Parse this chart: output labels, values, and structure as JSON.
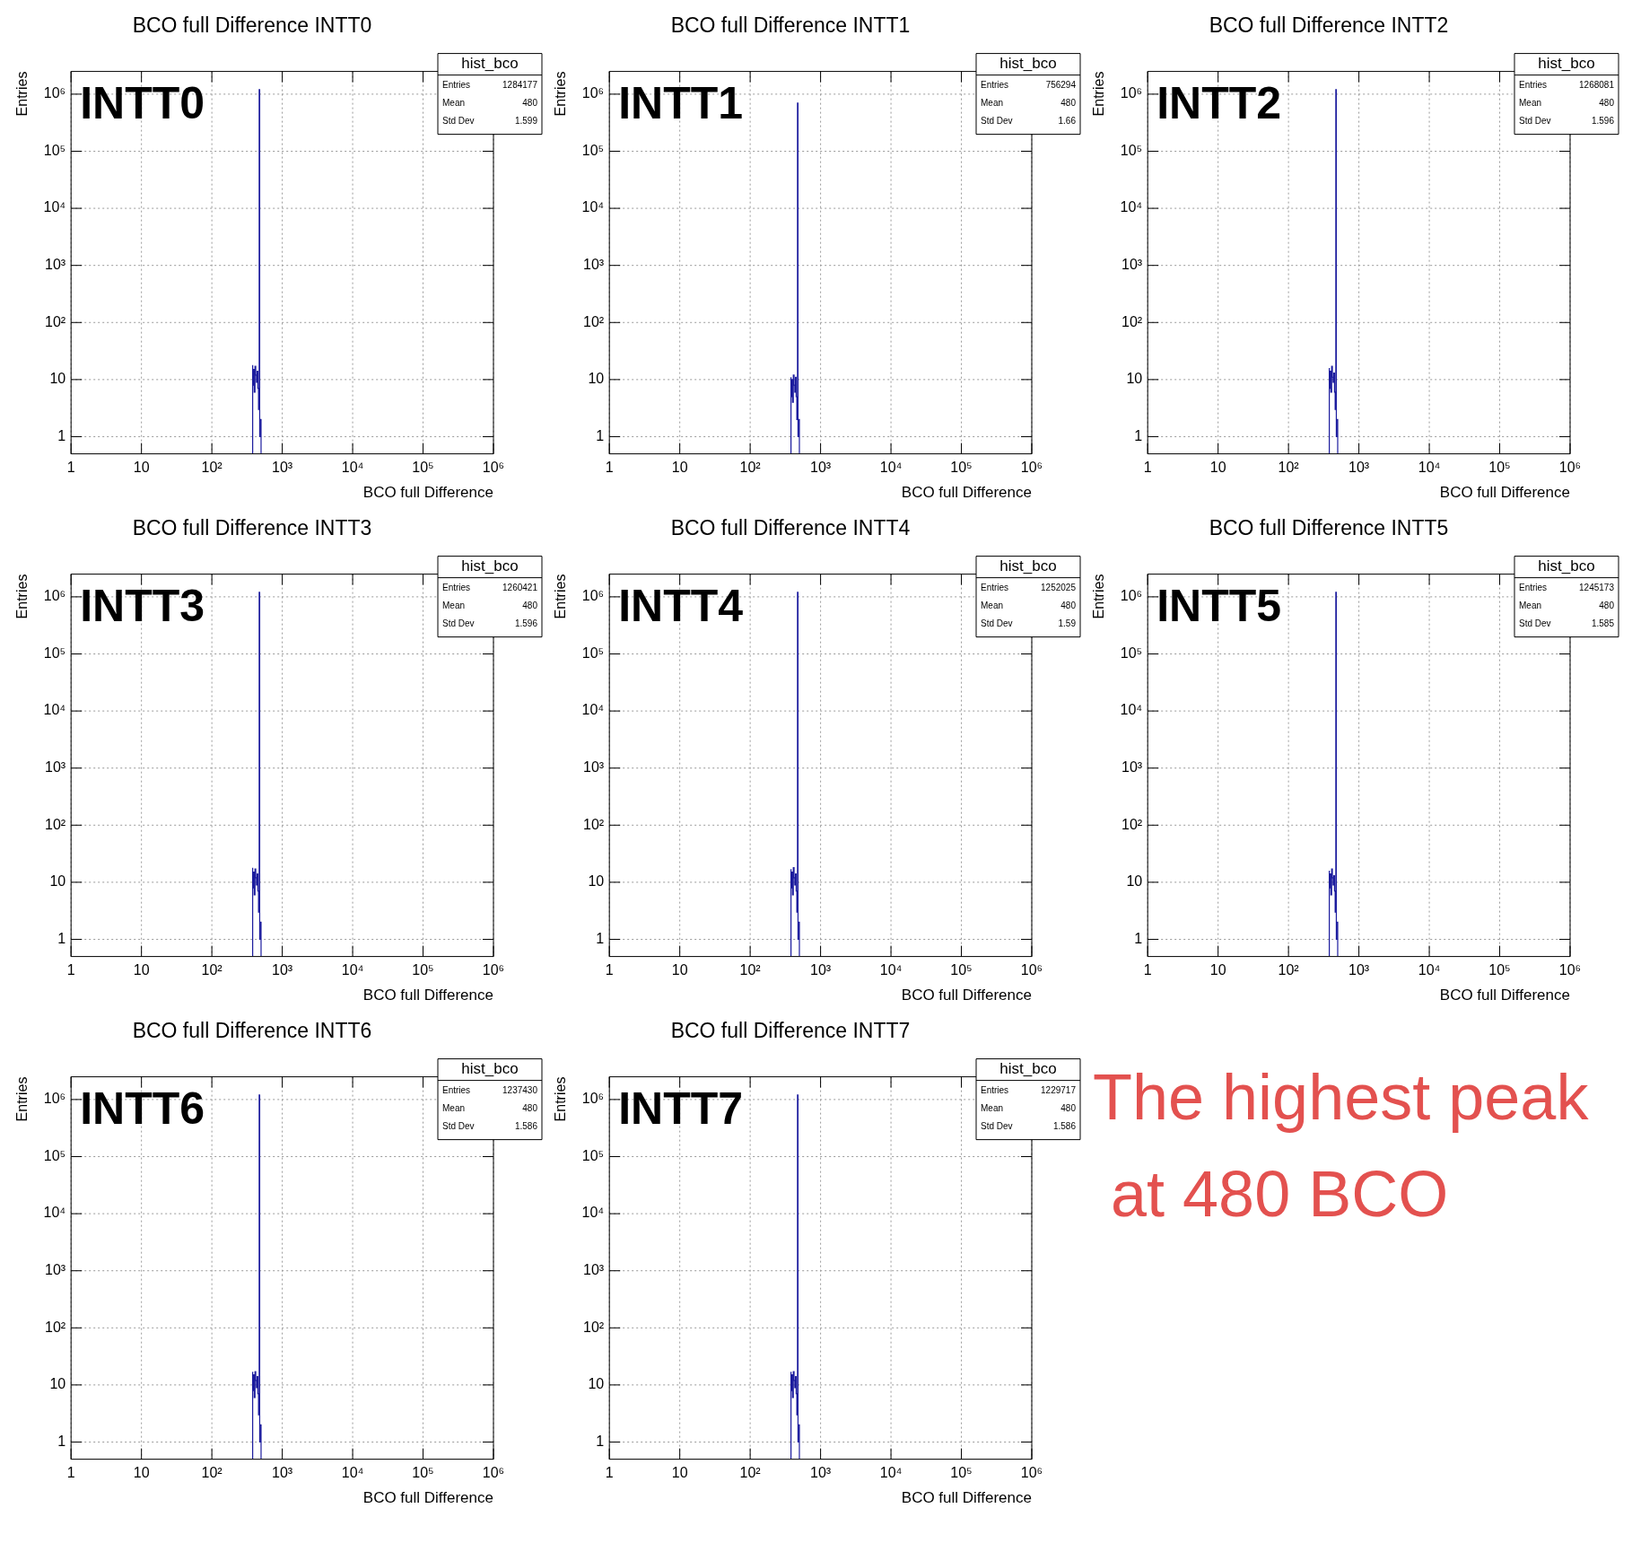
{
  "chart_data": [
    {
      "type": "histogram",
      "title": "BCO full Difference INTT0",
      "xlabel": "BCO full Difference",
      "ylabel": "Entries",
      "color": "#1c1c9e",
      "bins": [
        380,
        390,
        400,
        410,
        420,
        430,
        440,
        450,
        460,
        470,
        478,
        482,
        490,
        500
      ],
      "values": [
        18,
        8,
        15,
        6,
        17,
        12,
        9,
        14,
        7,
        3,
        1200000,
        1,
        2
      ],
      "log": "xy",
      "grid": true,
      "legend": false,
      "xlim": [
        1,
        1000000
      ],
      "ylim": [
        0.5,
        2500000
      ],
      "xticks": [
        {
          "value": 1,
          "label": "1"
        },
        {
          "value": 10,
          "label": "10"
        },
        {
          "value": 100,
          "label": "10²"
        },
        {
          "value": 1000,
          "label": "10³"
        },
        {
          "value": 10000,
          "label": "10⁴"
        },
        {
          "value": 100000,
          "label": "10⁵"
        },
        {
          "value": 1000000,
          "label": "10⁶"
        }
      ],
      "yticks": [
        {
          "value": 1,
          "label": "1"
        },
        {
          "value": 10,
          "label": "10"
        },
        {
          "value": 100,
          "label": "10²"
        },
        {
          "value": 1000,
          "label": "10³"
        },
        {
          "value": 10000,
          "label": "10⁴"
        },
        {
          "value": 100000,
          "label": "10⁵"
        },
        {
          "value": 1000000,
          "label": "10⁶"
        }
      ],
      "annotations": [
        "INTT0",
        "hist_bco",
        "Entries",
        "1284177",
        "Mean",
        "480",
        "Std Dev",
        "1.599"
      ]
    },
    {
      "type": "histogram",
      "title": "BCO full Difference INTT1",
      "xlabel": "BCO full Difference",
      "ylabel": "Entries",
      "color": "#1c1c9e",
      "bins": [
        380,
        390,
        400,
        410,
        420,
        430,
        440,
        450,
        460,
        470,
        478,
        482,
        490,
        500
      ],
      "values": [
        11,
        5,
        10,
        4,
        12,
        8,
        6,
        11,
        5,
        2,
        700000,
        1,
        2
      ],
      "log": "xy",
      "grid": true,
      "legend": false,
      "xlim": [
        1,
        1000000
      ],
      "ylim": [
        0.5,
        2500000
      ],
      "xticks": [
        {
          "value": 1,
          "label": "1"
        },
        {
          "value": 10,
          "label": "10"
        },
        {
          "value": 100,
          "label": "10²"
        },
        {
          "value": 1000,
          "label": "10³"
        },
        {
          "value": 10000,
          "label": "10⁴"
        },
        {
          "value": 100000,
          "label": "10⁵"
        },
        {
          "value": 1000000,
          "label": "10⁶"
        }
      ],
      "yticks": [
        {
          "value": 1,
          "label": "1"
        },
        {
          "value": 10,
          "label": "10"
        },
        {
          "value": 100,
          "label": "10²"
        },
        {
          "value": 1000,
          "label": "10³"
        },
        {
          "value": 10000,
          "label": "10⁴"
        },
        {
          "value": 100000,
          "label": "10⁵"
        },
        {
          "value": 1000000,
          "label": "10⁶"
        }
      ],
      "annotations": [
        "INTT1",
        "hist_bco",
        "Entries",
        "756294",
        "Mean",
        "480",
        "Std Dev",
        "1.66"
      ]
    },
    {
      "type": "histogram",
      "title": "BCO full Difference INTT2",
      "xlabel": "BCO full Difference",
      "ylabel": "Entries",
      "color": "#1c1c9e",
      "bins": [
        380,
        390,
        400,
        410,
        420,
        430,
        440,
        450,
        460,
        470,
        478,
        482,
        490,
        500
      ],
      "values": [
        16,
        7,
        14,
        6,
        17,
        11,
        9,
        13,
        6,
        3,
        1200000,
        1,
        2
      ],
      "log": "xy",
      "grid": true,
      "legend": false,
      "xlim": [
        1,
        1000000
      ],
      "ylim": [
        0.5,
        2500000
      ],
      "xticks": [
        {
          "value": 1,
          "label": "1"
        },
        {
          "value": 10,
          "label": "10"
        },
        {
          "value": 100,
          "label": "10²"
        },
        {
          "value": 1000,
          "label": "10³"
        },
        {
          "value": 10000,
          "label": "10⁴"
        },
        {
          "value": 100000,
          "label": "10⁵"
        },
        {
          "value": 1000000,
          "label": "10⁶"
        }
      ],
      "yticks": [
        {
          "value": 1,
          "label": "1"
        },
        {
          "value": 10,
          "label": "10"
        },
        {
          "value": 100,
          "label": "10²"
        },
        {
          "value": 1000,
          "label": "10³"
        },
        {
          "value": 10000,
          "label": "10⁴"
        },
        {
          "value": 100000,
          "label": "10⁵"
        },
        {
          "value": 1000000,
          "label": "10⁶"
        }
      ],
      "annotations": [
        "INTT2",
        "hist_bco",
        "Entries",
        "1268081",
        "Mean",
        "480",
        "Std Dev",
        "1.596"
      ]
    },
    {
      "type": "histogram",
      "title": "BCO full Difference INTT3",
      "xlabel": "BCO full Difference",
      "ylabel": "Entries",
      "color": "#1c1c9e",
      "bins": [
        380,
        390,
        400,
        410,
        420,
        430,
        440,
        450,
        460,
        470,
        478,
        482,
        490,
        500
      ],
      "values": [
        18,
        8,
        15,
        6,
        17,
        12,
        9,
        14,
        7,
        3,
        1200000,
        1,
        2
      ],
      "log": "xy",
      "grid": true,
      "legend": false,
      "xlim": [
        1,
        1000000
      ],
      "ylim": [
        0.5,
        2500000
      ],
      "xticks": [
        {
          "value": 1,
          "label": "1"
        },
        {
          "value": 10,
          "label": "10"
        },
        {
          "value": 100,
          "label": "10²"
        },
        {
          "value": 1000,
          "label": "10³"
        },
        {
          "value": 10000,
          "label": "10⁴"
        },
        {
          "value": 100000,
          "label": "10⁵"
        },
        {
          "value": 1000000,
          "label": "10⁶"
        }
      ],
      "yticks": [
        {
          "value": 1,
          "label": "1"
        },
        {
          "value": 10,
          "label": "10"
        },
        {
          "value": 100,
          "label": "10²"
        },
        {
          "value": 1000,
          "label": "10³"
        },
        {
          "value": 10000,
          "label": "10⁴"
        },
        {
          "value": 100000,
          "label": "10⁵"
        },
        {
          "value": 1000000,
          "label": "10⁶"
        }
      ],
      "annotations": [
        "INTT3",
        "hist_bco",
        "Entries",
        "1260421",
        "Mean",
        "480",
        "Std Dev",
        "1.596"
      ]
    },
    {
      "type": "histogram",
      "title": "BCO full Difference INTT4",
      "xlabel": "BCO full Difference",
      "ylabel": "Entries",
      "color": "#1c1c9e",
      "bins": [
        380,
        390,
        400,
        410,
        420,
        430,
        440,
        450,
        460,
        470,
        478,
        482,
        490,
        500
      ],
      "values": [
        17,
        8,
        15,
        6,
        18,
        12,
        9,
        14,
        7,
        3,
        1200000,
        1,
        2
      ],
      "log": "xy",
      "grid": true,
      "legend": false,
      "xlim": [
        1,
        1000000
      ],
      "ylim": [
        0.5,
        2500000
      ],
      "xticks": [
        {
          "value": 1,
          "label": "1"
        },
        {
          "value": 10,
          "label": "10"
        },
        {
          "value": 100,
          "label": "10²"
        },
        {
          "value": 1000,
          "label": "10³"
        },
        {
          "value": 10000,
          "label": "10⁴"
        },
        {
          "value": 100000,
          "label": "10⁵"
        },
        {
          "value": 1000000,
          "label": "10⁶"
        }
      ],
      "yticks": [
        {
          "value": 1,
          "label": "1"
        },
        {
          "value": 10,
          "label": "10"
        },
        {
          "value": 100,
          "label": "10²"
        },
        {
          "value": 1000,
          "label": "10³"
        },
        {
          "value": 10000,
          "label": "10⁴"
        },
        {
          "value": 100000,
          "label": "10⁵"
        },
        {
          "value": 1000000,
          "label": "10⁶"
        }
      ],
      "annotations": [
        "INTT4",
        "hist_bco",
        "Entries",
        "1252025",
        "Mean",
        "480",
        "Std Dev",
        "1.59"
      ]
    },
    {
      "type": "histogram",
      "title": "BCO full Difference INTT5",
      "xlabel": "BCO full Difference",
      "ylabel": "Entries",
      "color": "#1c1c9e",
      "bins": [
        380,
        390,
        400,
        410,
        420,
        430,
        440,
        450,
        460,
        470,
        478,
        482,
        490,
        500
      ],
      "values": [
        16,
        8,
        14,
        6,
        17,
        12,
        9,
        13,
        7,
        3,
        1200000,
        1,
        2
      ],
      "log": "xy",
      "grid": true,
      "legend": false,
      "xlim": [
        1,
        1000000
      ],
      "ylim": [
        0.5,
        2500000
      ],
      "xticks": [
        {
          "value": 1,
          "label": "1"
        },
        {
          "value": 10,
          "label": "10"
        },
        {
          "value": 100,
          "label": "10²"
        },
        {
          "value": 1000,
          "label": "10³"
        },
        {
          "value": 10000,
          "label": "10⁴"
        },
        {
          "value": 100000,
          "label": "10⁵"
        },
        {
          "value": 1000000,
          "label": "10⁶"
        }
      ],
      "yticks": [
        {
          "value": 1,
          "label": "1"
        },
        {
          "value": 10,
          "label": "10"
        },
        {
          "value": 100,
          "label": "10²"
        },
        {
          "value": 1000,
          "label": "10³"
        },
        {
          "value": 10000,
          "label": "10⁴"
        },
        {
          "value": 100000,
          "label": "10⁵"
        },
        {
          "value": 1000000,
          "label": "10⁶"
        }
      ],
      "annotations": [
        "INTT5",
        "hist_bco",
        "Entries",
        "1245173",
        "Mean",
        "480",
        "Std Dev",
        "1.585"
      ]
    },
    {
      "type": "histogram",
      "title": "BCO full Difference INTT6",
      "xlabel": "BCO full Difference",
      "ylabel": "Entries",
      "color": "#1c1c9e",
      "bins": [
        380,
        390,
        400,
        410,
        420,
        430,
        440,
        450,
        460,
        470,
        478,
        482,
        490,
        500
      ],
      "values": [
        17,
        8,
        15,
        6,
        17,
        12,
        9,
        14,
        7,
        3,
        1200000,
        1,
        2
      ],
      "log": "xy",
      "grid": true,
      "legend": false,
      "xlim": [
        1,
        1000000
      ],
      "ylim": [
        0.5,
        2500000
      ],
      "xticks": [
        {
          "value": 1,
          "label": "1"
        },
        {
          "value": 10,
          "label": "10"
        },
        {
          "value": 100,
          "label": "10²"
        },
        {
          "value": 1000,
          "label": "10³"
        },
        {
          "value": 10000,
          "label": "10⁴"
        },
        {
          "value": 100000,
          "label": "10⁵"
        },
        {
          "value": 1000000,
          "label": "10⁶"
        }
      ],
      "yticks": [
        {
          "value": 1,
          "label": "1"
        },
        {
          "value": 10,
          "label": "10"
        },
        {
          "value": 100,
          "label": "10²"
        },
        {
          "value": 1000,
          "label": "10³"
        },
        {
          "value": 10000,
          "label": "10⁴"
        },
        {
          "value": 100000,
          "label": "10⁵"
        },
        {
          "value": 1000000,
          "label": "10⁶"
        }
      ],
      "annotations": [
        "INTT6",
        "hist_bco",
        "Entries",
        "1237430",
        "Mean",
        "480",
        "Std Dev",
        "1.586"
      ]
    },
    {
      "type": "histogram",
      "title": "BCO full Difference INTT7",
      "xlabel": "BCO full Difference",
      "ylabel": "Entries",
      "color": "#1c1c9e",
      "bins": [
        380,
        390,
        400,
        410,
        420,
        430,
        440,
        450,
        460,
        470,
        478,
        482,
        490,
        500
      ],
      "values": [
        17,
        8,
        15,
        6,
        17,
        12,
        9,
        14,
        7,
        3,
        1200000,
        1,
        2
      ],
      "log": "xy",
      "grid": true,
      "legend": false,
      "xlim": [
        1,
        1000000
      ],
      "ylim": [
        0.5,
        2500000
      ],
      "xticks": [
        {
          "value": 1,
          "label": "1"
        },
        {
          "value": 10,
          "label": "10"
        },
        {
          "value": 100,
          "label": "10²"
        },
        {
          "value": 1000,
          "label": "10³"
        },
        {
          "value": 10000,
          "label": "10⁴"
        },
        {
          "value": 100000,
          "label": "10⁵"
        },
        {
          "value": 1000000,
          "label": "10⁶"
        }
      ],
      "yticks": [
        {
          "value": 1,
          "label": "1"
        },
        {
          "value": 10,
          "label": "10"
        },
        {
          "value": 100,
          "label": "10²"
        },
        {
          "value": 1000,
          "label": "10³"
        },
        {
          "value": 10000,
          "label": "10⁴"
        },
        {
          "value": 100000,
          "label": "10⁵"
        },
        {
          "value": 1000000,
          "label": "10⁶"
        }
      ],
      "annotations": [
        "INTT7",
        "hist_bco",
        "Entries",
        "1229717",
        "Mean",
        "480",
        "Std Dev",
        "1.586"
      ]
    },
    {
      "type": "other",
      "color": "#e3514f",
      "annotations": [
        "The highest peak",
        "at 480 BCO"
      ]
    }
  ]
}
